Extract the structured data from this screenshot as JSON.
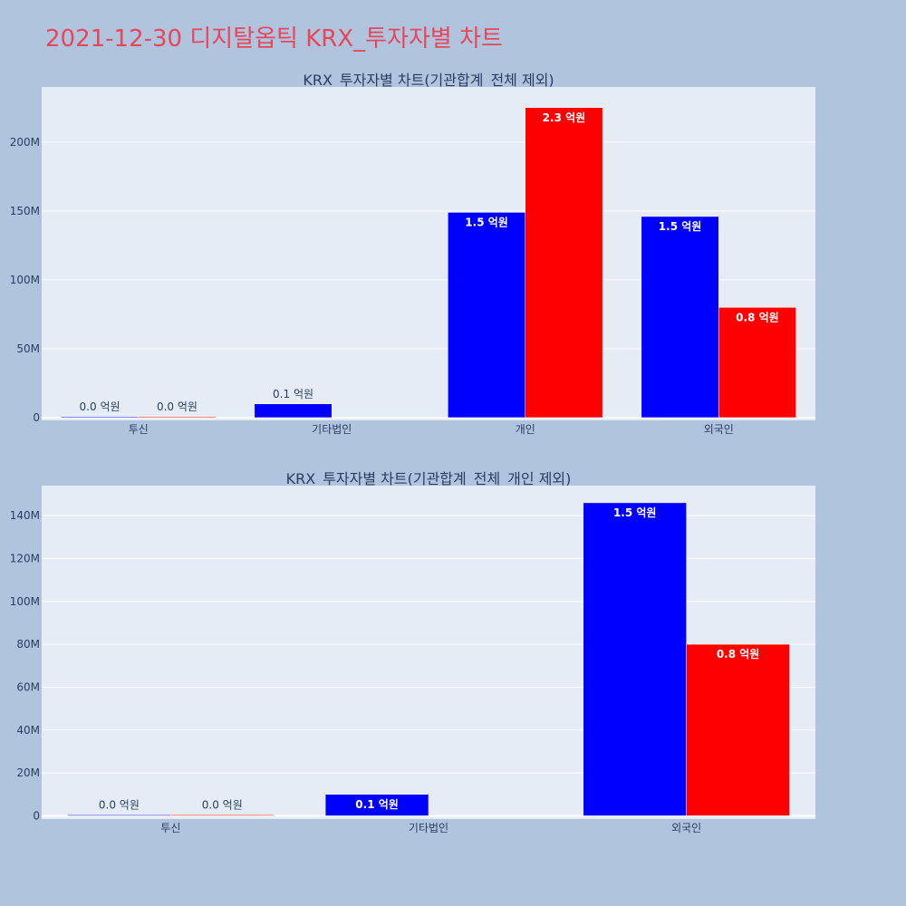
{
  "page": {
    "title": "2021-12-30 디지탈옵틱 KRX_투자자별 차트",
    "background": "#b0c4de",
    "title_color": "#e8465a",
    "plot_background": "#e5ecf6"
  },
  "chart_data": [
    {
      "type": "bar",
      "title": "KRX_투자자별 차트(기관합계_전체 제외)",
      "categories": [
        "투신",
        "기타법인",
        "개인",
        "외국인"
      ],
      "series": [
        {
          "color": "#0000ff",
          "values": [
            0,
            10000000,
            149000000,
            146000000
          ],
          "labels": [
            "0.0 억원",
            "0.1 억원",
            "1.5 억원",
            "1.5 억원"
          ]
        },
        {
          "color": "#ff0000",
          "values": [
            0,
            null,
            225000000,
            80000000
          ],
          "labels": [
            "0.0 억원",
            "",
            "2.3 억원",
            "0.8 억원"
          ]
        }
      ],
      "ylim": [
        -2000000,
        240000000
      ],
      "yticks": [
        0,
        50000000,
        100000000,
        150000000,
        200000000
      ],
      "ytick_labels": [
        "0",
        "50M",
        "100M",
        "150M",
        "200M"
      ],
      "grid": true
    },
    {
      "type": "bar",
      "title": "KRX_투자자별 차트(기관합계_전체_개인 제외)",
      "categories": [
        "투신",
        "기타법인",
        "외국인"
      ],
      "series": [
        {
          "color": "#0000ff",
          "values": [
            0,
            10000000,
            146000000
          ],
          "labels": [
            "0.0 억원",
            "0.1 억원",
            "1.5 억원"
          ]
        },
        {
          "color": "#ff0000",
          "values": [
            0,
            null,
            80000000
          ],
          "labels": [
            "0.0 억원",
            "",
            "0.8 억원"
          ]
        }
      ],
      "ylim": [
        -1500000,
        154000000
      ],
      "yticks": [
        0,
        20000000,
        40000000,
        60000000,
        80000000,
        100000000,
        120000000,
        140000000
      ],
      "ytick_labels": [
        "0",
        "20M",
        "40M",
        "60M",
        "80M",
        "100M",
        "120M",
        "140M"
      ],
      "grid": true
    }
  ]
}
